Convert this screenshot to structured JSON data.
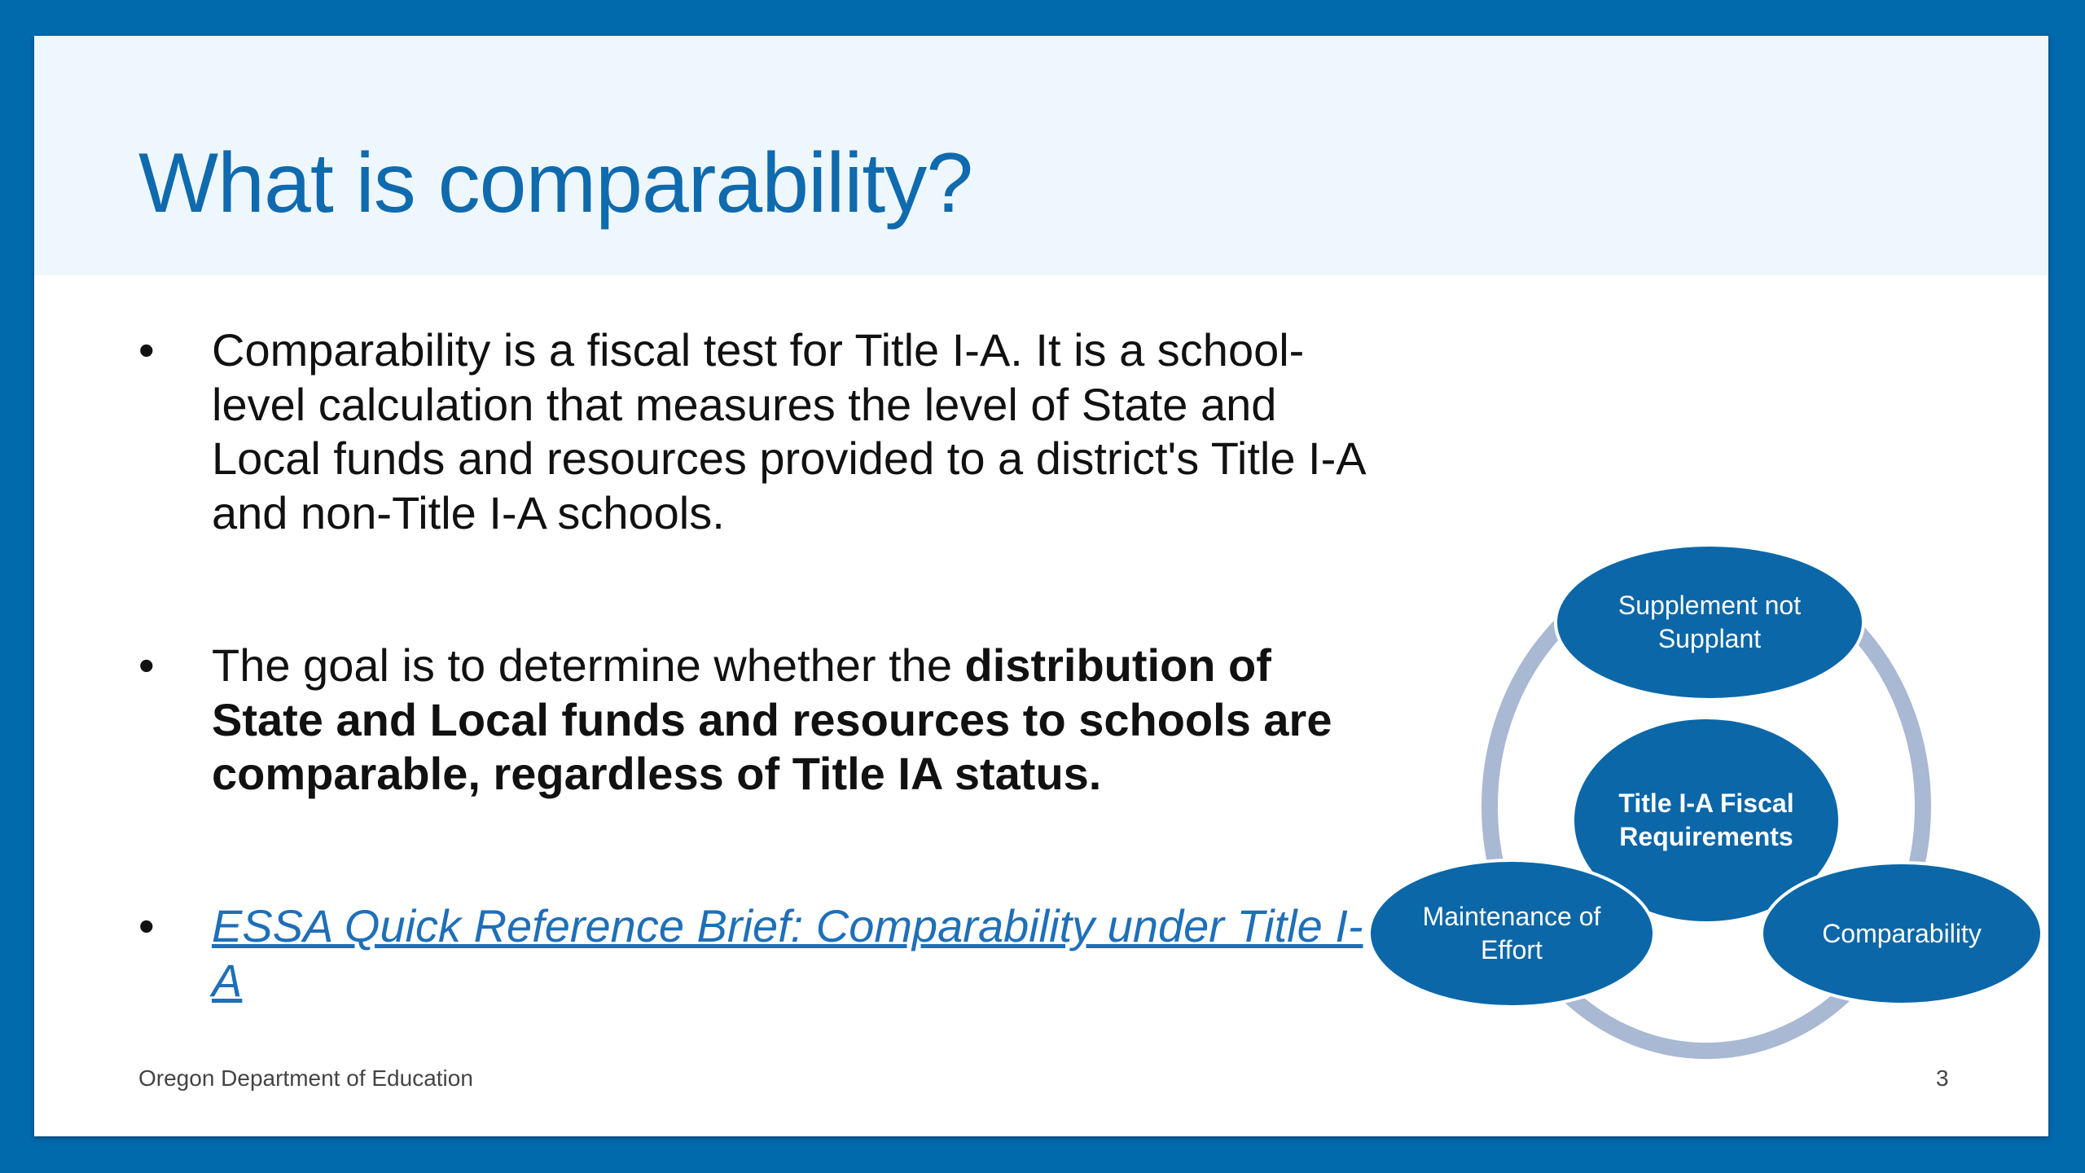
{
  "slide": {
    "title": "What is comparability?",
    "bullets": [
      {
        "text": "Comparability is a fiscal test for Title I-A. It is a school-level calculation that measures the level of State and Local funds and resources provided to a district's Title I-A and non-Title I-A schools."
      },
      {
        "text_normal": "The goal is to determine whether the ",
        "text_bold": "distribution of State and Local funds and resources to schools are comparable, regardless of Title IA status."
      },
      {
        "link": "ESSA Quick Reference Brief: Comparability under Title I-A"
      }
    ],
    "bullet_char": "•",
    "footer": "Oregon Department of Education",
    "page_number": "3"
  },
  "diagram": {
    "center": [
      "Title I-A Fiscal",
      "Requirements"
    ],
    "top": [
      "Supplement not",
      "Supplant"
    ],
    "left": [
      "Maintenance of",
      "Effort"
    ],
    "right": [
      "Comparability"
    ]
  },
  "colors": {
    "frame": "#006aad",
    "title": "#0f6aae",
    "header_band": "#eef7fd",
    "diagram_fill": "#0b67a8",
    "ring": "#a9b8d3",
    "link": "#1f6fb8"
  }
}
